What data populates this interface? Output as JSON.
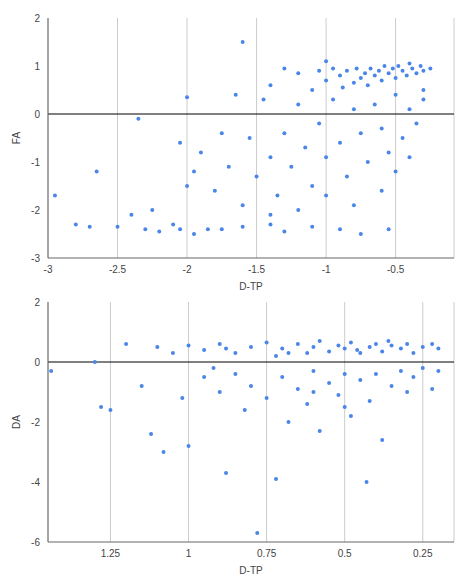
{
  "chart_data": [
    {
      "type": "scatter",
      "x_label": "D-TP",
      "y_label": "FA",
      "xlim": [
        -3,
        -0.08
      ],
      "ylim": [
        -3,
        2
      ],
      "xticks": [
        -3,
        -2.5,
        -2,
        -1.5,
        -1,
        -0.5
      ],
      "yticks": [
        -3,
        -2,
        -1,
        0,
        1,
        2
      ],
      "grid": true,
      "color": "#4a86e8",
      "marker": "circle",
      "x": [
        -0.25,
        -0.3,
        -0.32,
        -0.35,
        -0.38,
        -0.4,
        -0.42,
        -0.45,
        -0.48,
        -0.5,
        -0.52,
        -0.55,
        -0.58,
        -0.6,
        -0.62,
        -0.65,
        -0.68,
        -0.7,
        -0.72,
        -0.75,
        -0.78,
        -0.8,
        -0.85,
        -0.88,
        -0.9,
        -0.95,
        -1.0,
        -1.05,
        -1.1,
        -1.2,
        -1.3,
        -1.4,
        -0.3,
        -0.35,
        -0.4,
        -0.45,
        -0.5,
        -0.55,
        -0.6,
        -0.65,
        -0.7,
        -0.75,
        -0.8,
        -0.85,
        -0.9,
        -0.95,
        -1.0,
        -1.05,
        -1.1,
        -1.15,
        -1.2,
        -1.25,
        -1.3,
        -1.35,
        -1.4,
        -1.45,
        -1.5,
        -1.55,
        -1.6,
        -1.65,
        -1.7,
        -1.75,
        -1.8,
        -1.9,
        -1.95,
        -2.0,
        -2.05,
        -0.6,
        -0.8,
        -1.0,
        -0.5,
        -0.4,
        -1.2,
        -1.4,
        -2.95,
        -2.8,
        -2.7,
        -2.65,
        -2.5,
        -2.4,
        -2.35,
        -2.3,
        -2.25,
        -2.2,
        -2.1,
        -2.05,
        -1.95,
        -1.85,
        -1.75,
        -1.6,
        -1.4,
        -1.3,
        -1.1,
        -0.9,
        -0.75,
        -0.55,
        -2.0,
        -1.6,
        -1.0,
        -0.3
      ],
      "values": [
        0.95,
        0.9,
        1.0,
        0.85,
        0.95,
        1.05,
        0.8,
        0.9,
        1.0,
        0.75,
        0.95,
        0.85,
        1.0,
        0.7,
        0.9,
        0.8,
        0.95,
        0.6,
        0.85,
        0.75,
        0.95,
        0.65,
        0.9,
        0.55,
        0.8,
        0.95,
        0.7,
        0.9,
        0.5,
        0.85,
        0.95,
        0.6,
        0.3,
        -0.2,
        0.1,
        -0.5,
        0.4,
        -0.8,
        -0.3,
        0.2,
        -1.0,
        -0.4,
        0.1,
        -1.3,
        -0.6,
        0.3,
        -0.9,
        -0.2,
        -1.5,
        -0.7,
        0.2,
        -1.1,
        -0.4,
        -1.7,
        -0.9,
        0.3,
        -1.3,
        -0.5,
        -1.9,
        0.4,
        -1.1,
        -0.4,
        -1.6,
        -0.8,
        -1.2,
        -1.5,
        -0.6,
        -1.6,
        -1.9,
        -1.7,
        -1.2,
        -0.9,
        -2.0,
        -2.1,
        -1.7,
        -2.3,
        -2.35,
        -1.2,
        -2.35,
        -2.1,
        -0.1,
        -2.4,
        -2.0,
        -2.45,
        -2.3,
        -2.4,
        -2.5,
        -2.4,
        -2.4,
        -2.35,
        -2.3,
        -2.45,
        -2.35,
        -2.4,
        -2.5,
        -2.4,
        0.35,
        1.5,
        1.1,
        0.5
      ]
    },
    {
      "type": "scatter",
      "x_label": "D-TP",
      "y_label": "DA",
      "xlim": [
        1.45,
        0.15
      ],
      "ylim": [
        -6,
        2
      ],
      "xticks": [
        1.25,
        1,
        0.75,
        0.5,
        0.25
      ],
      "yticks": [
        -6,
        -4,
        -2,
        0,
        2
      ],
      "grid": true,
      "color": "#4a86e8",
      "marker": "circle",
      "x": [
        1.44,
        1.3,
        1.2,
        1.1,
        1.05,
        1.0,
        0.95,
        0.9,
        0.85,
        0.8,
        0.75,
        0.72,
        0.7,
        0.65,
        0.62,
        0.6,
        0.58,
        0.55,
        0.52,
        0.5,
        0.48,
        0.45,
        0.42,
        0.4,
        0.38,
        0.35,
        0.32,
        0.3,
        0.28,
        0.25,
        0.22,
        0.2,
        0.88,
        0.68,
        0.46,
        0.36,
        1.28,
        1.25,
        1.15,
        1.12,
        1.08,
        1.02,
        1.0,
        0.95,
        0.9,
        0.88,
        0.85,
        0.82,
        0.8,
        0.78,
        0.75,
        0.72,
        0.7,
        0.68,
        0.65,
        0.62,
        0.6,
        0.58,
        0.55,
        0.52,
        0.5,
        0.48,
        0.45,
        0.43,
        0.42,
        0.4,
        0.38,
        0.35,
        0.32,
        0.3,
        0.28,
        0.25,
        0.22,
        0.2,
        0.92,
        0.6,
        0.5
      ],
      "values": [
        -0.3,
        0.0,
        0.6,
        0.5,
        0.3,
        0.55,
        0.4,
        0.6,
        0.3,
        0.5,
        0.65,
        0.2,
        0.45,
        0.6,
        0.3,
        0.5,
        0.7,
        0.35,
        0.55,
        0.45,
        0.65,
        0.3,
        0.5,
        0.6,
        0.35,
        0.55,
        0.45,
        0.6,
        0.3,
        0.5,
        0.6,
        0.45,
        0.45,
        0.3,
        0.4,
        0.7,
        -1.5,
        -1.6,
        -0.8,
        -2.4,
        -3.0,
        -1.2,
        -2.8,
        -0.5,
        -1.0,
        -3.7,
        -0.4,
        -1.6,
        -0.8,
        -5.7,
        -1.2,
        -3.9,
        -0.5,
        -2.0,
        -0.9,
        -1.4,
        -0.3,
        -2.3,
        -0.7,
        -1.1,
        -0.4,
        -1.8,
        -0.6,
        -4.0,
        -1.3,
        -0.4,
        -2.6,
        -0.8,
        -0.3,
        -1.0,
        -0.5,
        -0.2,
        -0.9,
        -0.3,
        -0.2,
        -1.0,
        -1.5
      ]
    }
  ]
}
